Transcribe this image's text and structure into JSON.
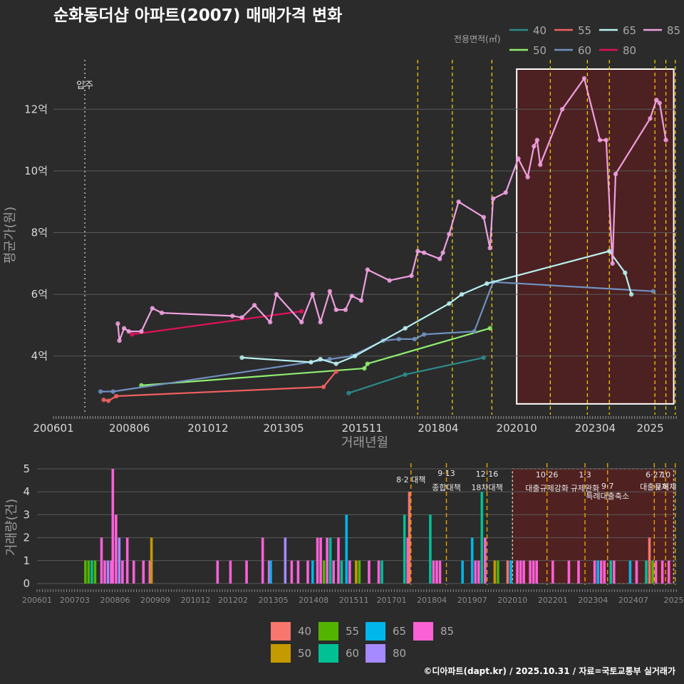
{
  "title": "순화동더샵 아파트(2007) 매매가격 변화",
  "caption": "©디아파트(dapt.kr) / 2025.10.31 / 자료=국토교통부 실거래가",
  "colors": {
    "background": "#2b2b2b",
    "grid": "#5a5a5a",
    "highlight_fill": "#5a1f1f",
    "policy_line": "#ffd700",
    "movein_line": "#bbbbbb"
  },
  "chart_data": [
    {
      "type": "line",
      "title": "순화동더샵 아파트(2007) 매매가격 변화",
      "xlabel": "거래년월",
      "ylabel": "평균가(원)",
      "x_unit": "year-month (decimal year)",
      "xlim": [
        2006.0,
        2025.85
      ],
      "ylim": [
        2.1,
        13.6
      ],
      "y_ticks": [
        4,
        6,
        8,
        10,
        12
      ],
      "y_tick_labels": [
        "4억",
        "6억",
        "8억",
        "10억",
        "12억"
      ],
      "x_ticks": [
        2006.0,
        2008.42,
        2010.92,
        2013.33,
        2015.83,
        2018.25,
        2020.75,
        2023.25,
        2025.0
      ],
      "x_tick_labels": [
        "200601",
        "200806",
        "201012",
        "201305",
        "201511",
        "201804",
        "202010",
        "202304",
        "2025"
      ],
      "legend_title": "전용면적(㎡)",
      "legend_position": "top-right",
      "movein": {
        "x": 2007.0,
        "label": "입주"
      },
      "highlight_range": [
        2020.75,
        2025.75
      ],
      "policy_lines": [
        2017.6,
        2018.7,
        2019.96,
        2021.82,
        2023.0,
        2023.7,
        2025.15,
        2025.5,
        2025.8
      ],
      "series": [
        {
          "name": "40",
          "color": "#2e8b8b",
          "points": [
            [
              2015.4,
              2.8
            ],
            [
              2017.2,
              3.4
            ],
            [
              2019.7,
              3.95
            ]
          ]
        },
        {
          "name": "50",
          "color": "#90ee70",
          "points": [
            [
              2008.8,
              3.05
            ],
            [
              2015.9,
              3.6
            ],
            [
              2016.0,
              3.75
            ],
            [
              2019.9,
              4.9
            ]
          ]
        },
        {
          "name": "55",
          "color": "#f06060",
          "points": [
            [
              2007.6,
              2.58
            ],
            [
              2007.75,
              2.55
            ],
            [
              2008.0,
              2.7
            ],
            [
              2014.6,
              3.0
            ],
            [
              2015.0,
              3.5
            ]
          ]
        },
        {
          "name": "60",
          "color": "#7090c0",
          "points": [
            [
              2007.5,
              2.85
            ],
            [
              2007.9,
              2.85
            ],
            [
              2014.8,
              3.9
            ],
            [
              2015.5,
              4.0
            ],
            [
              2016.5,
              4.5
            ],
            [
              2017.0,
              4.55
            ],
            [
              2017.5,
              4.55
            ],
            [
              2017.8,
              4.7
            ],
            [
              2019.4,
              4.8
            ],
            [
              2020.0,
              6.4
            ],
            [
              2025.1,
              6.1
            ]
          ]
        },
        {
          "name": "65",
          "color": "#b8f0f0",
          "points": [
            [
              2012.0,
              3.95
            ],
            [
              2014.2,
              3.8
            ],
            [
              2014.5,
              3.9
            ],
            [
              2015.0,
              3.75
            ],
            [
              2015.6,
              4.0
            ],
            [
              2017.2,
              4.9
            ],
            [
              2018.6,
              5.7
            ],
            [
              2019.0,
              6.0
            ],
            [
              2019.8,
              6.35
            ],
            [
              2023.7,
              7.4
            ],
            [
              2024.2,
              6.7
            ],
            [
              2024.4,
              6.0
            ]
          ]
        },
        {
          "name": "80",
          "color": "#e0105a",
          "points": [
            [
              2008.5,
              4.7
            ],
            [
              2013.9,
              5.45
            ]
          ]
        },
        {
          "name": "85",
          "color": "#f0a0e0",
          "points": [
            [
              2008.05,
              5.05
            ],
            [
              2008.1,
              4.5
            ],
            [
              2008.25,
              4.9
            ],
            [
              2008.4,
              4.8
            ],
            [
              2008.8,
              4.8
            ],
            [
              2009.15,
              5.55
            ],
            [
              2009.45,
              5.4
            ],
            [
              2011.7,
              5.3
            ],
            [
              2012.0,
              5.25
            ],
            [
              2012.4,
              5.65
            ],
            [
              2012.9,
              5.1
            ],
            [
              2013.1,
              6.0
            ],
            [
              2013.9,
              5.1
            ],
            [
              2014.25,
              6.0
            ],
            [
              2014.5,
              5.1
            ],
            [
              2014.8,
              6.1
            ],
            [
              2015.0,
              5.5
            ],
            [
              2015.3,
              5.5
            ],
            [
              2015.5,
              5.95
            ],
            [
              2015.8,
              5.8
            ],
            [
              2016.0,
              6.8
            ],
            [
              2016.7,
              6.45
            ],
            [
              2017.4,
              6.6
            ],
            [
              2017.6,
              7.4
            ],
            [
              2017.8,
              7.35
            ],
            [
              2018.3,
              7.15
            ],
            [
              2018.4,
              7.35
            ],
            [
              2018.6,
              7.95
            ],
            [
              2018.9,
              9.0
            ],
            [
              2019.7,
              8.5
            ],
            [
              2019.9,
              7.5
            ],
            [
              2020.0,
              9.1
            ],
            [
              2020.4,
              9.3
            ],
            [
              2020.8,
              10.4
            ],
            [
              2021.1,
              9.8
            ],
            [
              2021.3,
              10.8
            ],
            [
              2021.4,
              11.0
            ],
            [
              2021.5,
              10.2
            ],
            [
              2022.2,
              12.0
            ],
            [
              2022.9,
              13.0
            ],
            [
              2023.4,
              11.0
            ],
            [
              2023.6,
              11.0
            ],
            [
              2023.8,
              7.0
            ],
            [
              2023.9,
              9.9
            ],
            [
              2025.0,
              11.7
            ],
            [
              2025.2,
              12.3
            ],
            [
              2025.3,
              12.2
            ],
            [
              2025.5,
              11.0
            ]
          ]
        }
      ]
    },
    {
      "type": "bar",
      "title": "",
      "xlabel": "",
      "ylabel": "거래량(건)",
      "xlim": [
        2006.0,
        2025.85
      ],
      "ylim": [
        0,
        5
      ],
      "y_ticks": [
        0,
        1,
        2,
        3,
        4,
        5
      ],
      "y_tick_labels": [
        "0",
        "1",
        "2",
        "3",
        "4",
        "5"
      ],
      "x_ticks": [
        2006.0,
        2007.17,
        2008.42,
        2009.67,
        2010.92,
        2012.08,
        2013.33,
        2014.58,
        2015.83,
        2017.0,
        2018.25,
        2019.5,
        2020.75,
        2022.0,
        2023.25,
        2024.5,
        2025.75
      ],
      "x_tick_labels": [
        "200601",
        "200703",
        "200806",
        "200909",
        "201012",
        "201202",
        "201305",
        "201408",
        "201511",
        "201701",
        "201804",
        "201907",
        "202010",
        "202201",
        "202304",
        "202407",
        "2025"
      ],
      "legend_position": "bottom",
      "legend_entries": [
        "40",
        "50",
        "55",
        "60",
        "65",
        "80",
        "85"
      ],
      "legend_colors": {
        "40": "#f8766d",
        "50": "#c49a00",
        "55": "#53b400",
        "60": "#00c094",
        "65": "#00b6eb",
        "80": "#a58aff",
        "85": "#fb61d7"
      },
      "highlight_range": [
        2020.75,
        2025.75
      ],
      "policy_lines": [
        2017.6,
        2018.7,
        2019.96,
        2021.82,
        2023.0,
        2023.7,
        2025.15,
        2025.5,
        2025.8
      ],
      "annotations": [
        {
          "x": 2017.6,
          "line1": "8·2 대책",
          "line2": ""
        },
        {
          "x": 2018.7,
          "line1": "9·13",
          "line2": "종합대책"
        },
        {
          "x": 2019.96,
          "line1": "12·16",
          "line2": "18차대책"
        },
        {
          "x": 2021.82,
          "line1": "10·26",
          "line2": "대출규제강화"
        },
        {
          "x": 2023.0,
          "line1": "1·3",
          "line2": "규제완화"
        },
        {
          "x": 2023.7,
          "line1": "",
          "line2": "9·7"
        },
        {
          "x": 2023.7,
          "line1": "",
          "line2": "특례대출축소"
        },
        {
          "x": 2025.15,
          "line1": "6·27",
          "line2": "대출규제"
        },
        {
          "x": 2025.5,
          "line1": "10",
          "line2": "토허제"
        }
      ],
      "bars": [
        {
          "x": 2007.5,
          "area": "55",
          "count": 1
        },
        {
          "x": 2007.6,
          "area": "55",
          "count": 1
        },
        {
          "x": 2007.7,
          "area": "60",
          "count": 1
        },
        {
          "x": 2007.8,
          "area": "55",
          "count": 1
        },
        {
          "x": 2008.0,
          "area": "85",
          "count": 2
        },
        {
          "x": 2008.1,
          "area": "85",
          "count": 1
        },
        {
          "x": 2008.2,
          "area": "80",
          "count": 1
        },
        {
          "x": 2008.3,
          "area": "85",
          "count": 1
        },
        {
          "x": 2008.35,
          "area": "85",
          "count": 5
        },
        {
          "x": 2008.45,
          "area": "85",
          "count": 3
        },
        {
          "x": 2008.55,
          "area": "80",
          "count": 2
        },
        {
          "x": 2008.65,
          "area": "85",
          "count": 1
        },
        {
          "x": 2008.8,
          "area": "85",
          "count": 2
        },
        {
          "x": 2009.0,
          "area": "85",
          "count": 1
        },
        {
          "x": 2009.3,
          "area": "85",
          "count": 1
        },
        {
          "x": 2009.5,
          "area": "85",
          "count": 1
        },
        {
          "x": 2009.55,
          "area": "50",
          "count": 2
        },
        {
          "x": 2011.6,
          "area": "85",
          "count": 1
        },
        {
          "x": 2012.0,
          "area": "85",
          "count": 1
        },
        {
          "x": 2012.5,
          "area": "85",
          "count": 1
        },
        {
          "x": 2013.0,
          "area": "85",
          "count": 2
        },
        {
          "x": 2013.2,
          "area": "85",
          "count": 1
        },
        {
          "x": 2013.25,
          "area": "65",
          "count": 1
        },
        {
          "x": 2013.7,
          "area": "80",
          "count": 2
        },
        {
          "x": 2013.9,
          "area": "85",
          "count": 1
        },
        {
          "x": 2014.1,
          "area": "85",
          "count": 1
        },
        {
          "x": 2014.4,
          "area": "85",
          "count": 1
        },
        {
          "x": 2014.55,
          "area": "65",
          "count": 1
        },
        {
          "x": 2014.7,
          "area": "85",
          "count": 2
        },
        {
          "x": 2014.8,
          "area": "85",
          "count": 2
        },
        {
          "x": 2014.9,
          "area": "55",
          "count": 1
        },
        {
          "x": 2015.0,
          "area": "85",
          "count": 2
        },
        {
          "x": 2015.1,
          "area": "60",
          "count": 2
        },
        {
          "x": 2015.2,
          "area": "85",
          "count": 1
        },
        {
          "x": 2015.35,
          "area": "85",
          "count": 2
        },
        {
          "x": 2015.45,
          "area": "60",
          "count": 1
        },
        {
          "x": 2015.6,
          "area": "65",
          "count": 3
        },
        {
          "x": 2015.7,
          "area": "85",
          "count": 1
        },
        {
          "x": 2015.9,
          "area": "50",
          "count": 1
        },
        {
          "x": 2016.0,
          "area": "55",
          "count": 1
        },
        {
          "x": 2016.3,
          "area": "85",
          "count": 1
        },
        {
          "x": 2016.6,
          "area": "85",
          "count": 1
        },
        {
          "x": 2016.7,
          "area": "60",
          "count": 1
        },
        {
          "x": 2017.4,
          "area": "60",
          "count": 3
        },
        {
          "x": 2017.5,
          "area": "85",
          "count": 2
        },
        {
          "x": 2017.55,
          "area": "40",
          "count": 4
        },
        {
          "x": 2018.2,
          "area": "60",
          "count": 3
        },
        {
          "x": 2018.3,
          "area": "85",
          "count": 1
        },
        {
          "x": 2018.4,
          "area": "85",
          "count": 1
        },
        {
          "x": 2018.5,
          "area": "85",
          "count": 1
        },
        {
          "x": 2019.2,
          "area": "65",
          "count": 1
        },
        {
          "x": 2019.5,
          "area": "65",
          "count": 2
        },
        {
          "x": 2019.6,
          "area": "85",
          "count": 1
        },
        {
          "x": 2019.7,
          "area": "85",
          "count": 1
        },
        {
          "x": 2019.8,
          "area": "60",
          "count": 4
        },
        {
          "x": 2019.9,
          "area": "85",
          "count": 2
        },
        {
          "x": 2020.2,
          "area": "50",
          "count": 1
        },
        {
          "x": 2020.3,
          "area": "55",
          "count": 1
        },
        {
          "x": 2020.6,
          "area": "40",
          "count": 1
        },
        {
          "x": 2020.7,
          "area": "65",
          "count": 1
        },
        {
          "x": 2020.9,
          "area": "85",
          "count": 1
        },
        {
          "x": 2021.0,
          "area": "85",
          "count": 1
        },
        {
          "x": 2021.1,
          "area": "85",
          "count": 1
        },
        {
          "x": 2021.3,
          "area": "85",
          "count": 1
        },
        {
          "x": 2021.4,
          "area": "85",
          "count": 1
        },
        {
          "x": 2021.5,
          "area": "85",
          "count": 1
        },
        {
          "x": 2022.0,
          "area": "85",
          "count": 1
        },
        {
          "x": 2022.5,
          "area": "85",
          "count": 1
        },
        {
          "x": 2022.8,
          "area": "85",
          "count": 1
        },
        {
          "x": 2023.3,
          "area": "85",
          "count": 1
        },
        {
          "x": 2023.4,
          "area": "65",
          "count": 1
        },
        {
          "x": 2023.5,
          "area": "85",
          "count": 1
        },
        {
          "x": 2023.6,
          "area": "85",
          "count": 1
        },
        {
          "x": 2023.8,
          "area": "60",
          "count": 1
        },
        {
          "x": 2023.9,
          "area": "85",
          "count": 1
        },
        {
          "x": 2024.4,
          "area": "65",
          "count": 1
        },
        {
          "x": 2024.6,
          "area": "85",
          "count": 1
        },
        {
          "x": 2024.9,
          "area": "60",
          "count": 1
        },
        {
          "x": 2025.0,
          "area": "40",
          "count": 2
        },
        {
          "x": 2025.1,
          "area": "55",
          "count": 1
        },
        {
          "x": 2025.2,
          "area": "85",
          "count": 1
        },
        {
          "x": 2025.4,
          "area": "85",
          "count": 1
        },
        {
          "x": 2025.6,
          "area": "85",
          "count": 1
        }
      ]
    }
  ]
}
